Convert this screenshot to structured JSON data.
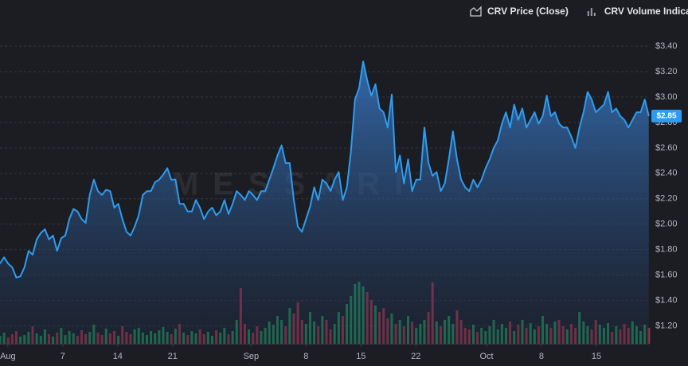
{
  "chart_data": {
    "type": "area",
    "x": [
      -1,
      -0.48,
      0.04,
      0.56,
      1.08,
      1.6,
      2.12,
      2.64,
      3.16,
      3.68,
      4.2,
      4.72,
      5.24,
      5.76,
      6.28,
      6.8,
      7.32,
      7.84,
      8.36,
      8.88,
      9.4,
      9.92,
      10.44,
      10.96,
      11.48,
      12,
      12.52,
      13.04,
      13.56,
      14.08,
      14.6,
      15.12,
      15.64,
      16.16,
      16.68,
      17.2,
      17.72,
      18.24,
      18.76,
      19.28,
      19.8,
      20.32,
      20.84,
      21.36,
      21.88,
      22.4,
      22.92,
      23.44,
      23.96,
      24.48,
      25,
      25.52,
      26.04,
      26.56,
      27.08,
      27.6,
      28.12,
      28.64,
      29.16,
      29.68,
      30.2,
      30.72,
      31.24,
      31.76,
      32.28,
      32.8,
      33.32,
      33.84,
      34.36,
      34.88,
      35.4,
      35.92,
      36.44,
      36.96,
      37.48,
      38,
      38.52,
      39.04,
      39.56,
      40.08,
      40.6,
      41.12,
      41.64,
      42.16,
      42.68,
      43.2,
      43.72,
      44.24,
      44.76,
      45.28,
      45.8,
      46.32,
      46.84,
      47.36,
      47.88,
      48.4,
      48.92,
      49.44,
      49.96,
      50.48,
      51,
      51.52,
      52.04,
      52.56,
      53.08,
      53.6,
      54.12,
      54.64,
      55.16,
      55.68,
      56.2,
      56.72,
      57.24,
      57.76,
      58.28,
      58.8,
      59.32,
      59.84,
      60.36,
      60.88,
      61.4,
      61.92,
      62.44,
      62.96,
      63.48,
      64,
      64.52,
      65.04,
      65.56,
      66.08,
      66.6,
      67.12,
      67.64,
      68.16,
      68.68,
      69.2,
      69.72,
      70.24,
      70.76,
      71.28,
      71.8,
      72.32,
      72.84,
      73.36,
      73.88,
      74.4,
      74.92,
      75.44,
      75.96,
      76.48,
      77,
      77.52,
      78.04,
      78.56,
      79.08,
      79.6,
      80.12,
      80.64,
      81.16,
      81.68
    ],
    "series": [
      {
        "name": "CRV Price (Close)",
        "color": "#2d9cf0",
        "values": [
          1.69,
          1.74,
          1.69,
          1.66,
          1.58,
          1.59,
          1.66,
          1.79,
          1.76,
          1.88,
          1.93,
          1.96,
          1.88,
          1.91,
          1.79,
          1.89,
          1.91,
          2.04,
          2.12,
          2.1,
          2.04,
          2.01,
          2.23,
          2.35,
          2.26,
          2.23,
          2.27,
          2.26,
          2.13,
          2.16,
          2.04,
          1.94,
          1.91,
          1.98,
          2.07,
          2.23,
          2.26,
          2.26,
          2.33,
          2.35,
          2.39,
          2.44,
          2.35,
          2.35,
          2.16,
          2.16,
          2.1,
          2.1,
          2.19,
          2.13,
          2.04,
          2.1,
          2.13,
          2.07,
          2.1,
          2.19,
          2.08,
          2.16,
          2.26,
          2.23,
          2.19,
          2.26,
          2.23,
          2.19,
          2.26,
          2.26,
          2.35,
          2.44,
          2.54,
          2.62,
          2.48,
          2.48,
          2.19,
          1.98,
          1.94,
          2.04,
          2.14,
          2.29,
          2.19,
          2.35,
          2.32,
          2.26,
          2.35,
          2.41,
          2.19,
          2.29,
          2.57,
          2.98,
          3.07,
          3.28,
          3.13,
          3.01,
          3.1,
          2.91,
          2.88,
          2.76,
          3.02,
          2.41,
          2.54,
          2.32,
          2.51,
          2.26,
          2.35,
          2.35,
          2.76,
          2.48,
          2.38,
          2.41,
          2.26,
          2.32,
          2.51,
          2.73,
          2.51,
          2.35,
          2.29,
          2.26,
          2.35,
          2.29,
          2.35,
          2.44,
          2.51,
          2.6,
          2.66,
          2.79,
          2.88,
          2.76,
          2.94,
          2.82,
          2.91,
          2.76,
          2.82,
          2.88,
          2.79,
          2.85,
          3.01,
          2.85,
          2.88,
          2.79,
          2.76,
          2.76,
          2.69,
          2.6,
          2.76,
          2.88,
          3.04,
          2.98,
          2.88,
          2.91,
          2.94,
          3.04,
          2.88,
          2.91,
          2.85,
          2.82,
          2.76,
          2.82,
          2.88,
          2.88,
          2.98,
          2.85
        ]
      },
      {
        "name": "CRV Volume Indicator",
        "type": "bar",
        "axis": "y2",
        "color": "#9a9ca4",
        "colors": {
          "up": "#1f9e5a",
          "down": "#b8344a"
        },
        "values": [
          10,
          14,
          8,
          12,
          16,
          9,
          11,
          15,
          22,
          13,
          10,
          18,
          12,
          9,
          14,
          20,
          11,
          16,
          13,
          10,
          17,
          12,
          15,
          24,
          14,
          11,
          19,
          13,
          16,
          10,
          22,
          15,
          12,
          18,
          20,
          14,
          11,
          16,
          13,
          17,
          21,
          15,
          12,
          19,
          25,
          14,
          11,
          16,
          13,
          18,
          12,
          15,
          10,
          17,
          14,
          20,
          12,
          16,
          30,
          70,
          25,
          18,
          14,
          22,
          16,
          20,
          28,
          24,
          35,
          30,
          22,
          45,
          38,
          52,
          30,
          25,
          40,
          28,
          22,
          35,
          30,
          18,
          25,
          40,
          35,
          50,
          60,
          75,
          78,
          72,
          65,
          55,
          48,
          40,
          45,
          32,
          38,
          25,
          30,
          22,
          35,
          28,
          20,
          25,
          30,
          40,
          77,
          28,
          22,
          30,
          35,
          25,
          42,
          30,
          20,
          18,
          24,
          15,
          20,
          16,
          22,
          30,
          18,
          25,
          20,
          28,
          16,
          24,
          30,
          20,
          26,
          18,
          22,
          35,
          25,
          20,
          28,
          30,
          22,
          18,
          25,
          20,
          40,
          28,
          22,
          18,
          30,
          24,
          20,
          26,
          15,
          22,
          18,
          25,
          20,
          28,
          22,
          16,
          24,
          20
        ]
      }
    ],
    "xlim": [
      -1,
      81.7
    ],
    "xticks": [
      {
        "value": 0,
        "label": "Aug"
      },
      7,
      14,
      21,
      {
        "value": 31,
        "label": "Sep"
      },
      {
        "value": 38,
        "label": "8"
      },
      {
        "value": 45,
        "label": "15"
      },
      {
        "value": 52,
        "label": "22"
      },
      {
        "value": 61,
        "label": "Oct"
      },
      {
        "value": 68,
        "label": "8"
      },
      {
        "value": 75,
        "label": "15"
      }
    ],
    "ylim": [
      1.06,
      3.5
    ],
    "yticks": [
      {
        "value": 1.2,
        "label": "$1.20"
      },
      {
        "value": 1.4,
        "label": "$1.40"
      },
      {
        "value": 1.6,
        "label": "$1.60"
      },
      {
        "value": 1.8,
        "label": "$1.80"
      },
      {
        "value": 2.0,
        "label": "$2.00"
      },
      {
        "value": 2.2,
        "label": "$2.20"
      },
      {
        "value": 2.4,
        "label": "$2.40"
      },
      {
        "value": 2.6,
        "label": "$2.60"
      },
      {
        "value": 2.8,
        "label": "$2.80"
      },
      {
        "value": 3.0,
        "label": "$3.00"
      },
      {
        "value": 3.2,
        "label": "$3.20"
      },
      {
        "value": 3.4,
        "label": "$3.40"
      }
    ],
    "y2lim": [
      0,
      390
    ],
    "grid": true,
    "legend": "top-right",
    "watermark": "MESSARI",
    "current_price": {
      "value": 2.85,
      "label": "$2.85"
    }
  }
}
